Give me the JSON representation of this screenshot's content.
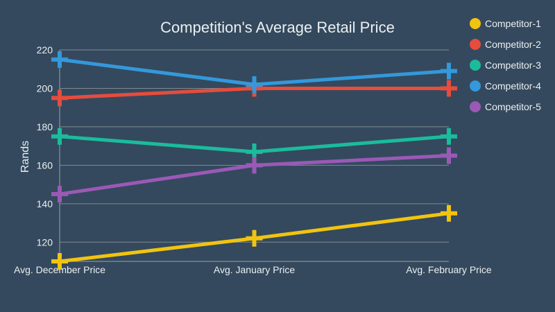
{
  "chart_data": {
    "type": "line",
    "title": "Competition's Average Retail Price",
    "xlabel": "",
    "ylabel": "Rands",
    "categories": [
      "Avg. December Price",
      "Avg. January Price",
      "Avg. February Price"
    ],
    "ylim": [
      110,
      220
    ],
    "yticks": [
      120,
      140,
      160,
      180,
      200,
      220
    ],
    "grid": true,
    "legend_position": "right",
    "series": [
      {
        "name": "Competitor-1",
        "color": "#f1c40f",
        "values": [
          110,
          122,
          135
        ]
      },
      {
        "name": "Competitor-2",
        "color": "#e74c3c",
        "values": [
          195,
          200,
          200
        ]
      },
      {
        "name": "Competitor-3",
        "color": "#1abc9c",
        "values": [
          175,
          167,
          175
        ]
      },
      {
        "name": "Competitor-4",
        "color": "#3498db",
        "values": [
          215,
          202,
          209
        ]
      },
      {
        "name": "Competitor-5",
        "color": "#9b59b6",
        "values": [
          145,
          160,
          165
        ]
      }
    ]
  }
}
